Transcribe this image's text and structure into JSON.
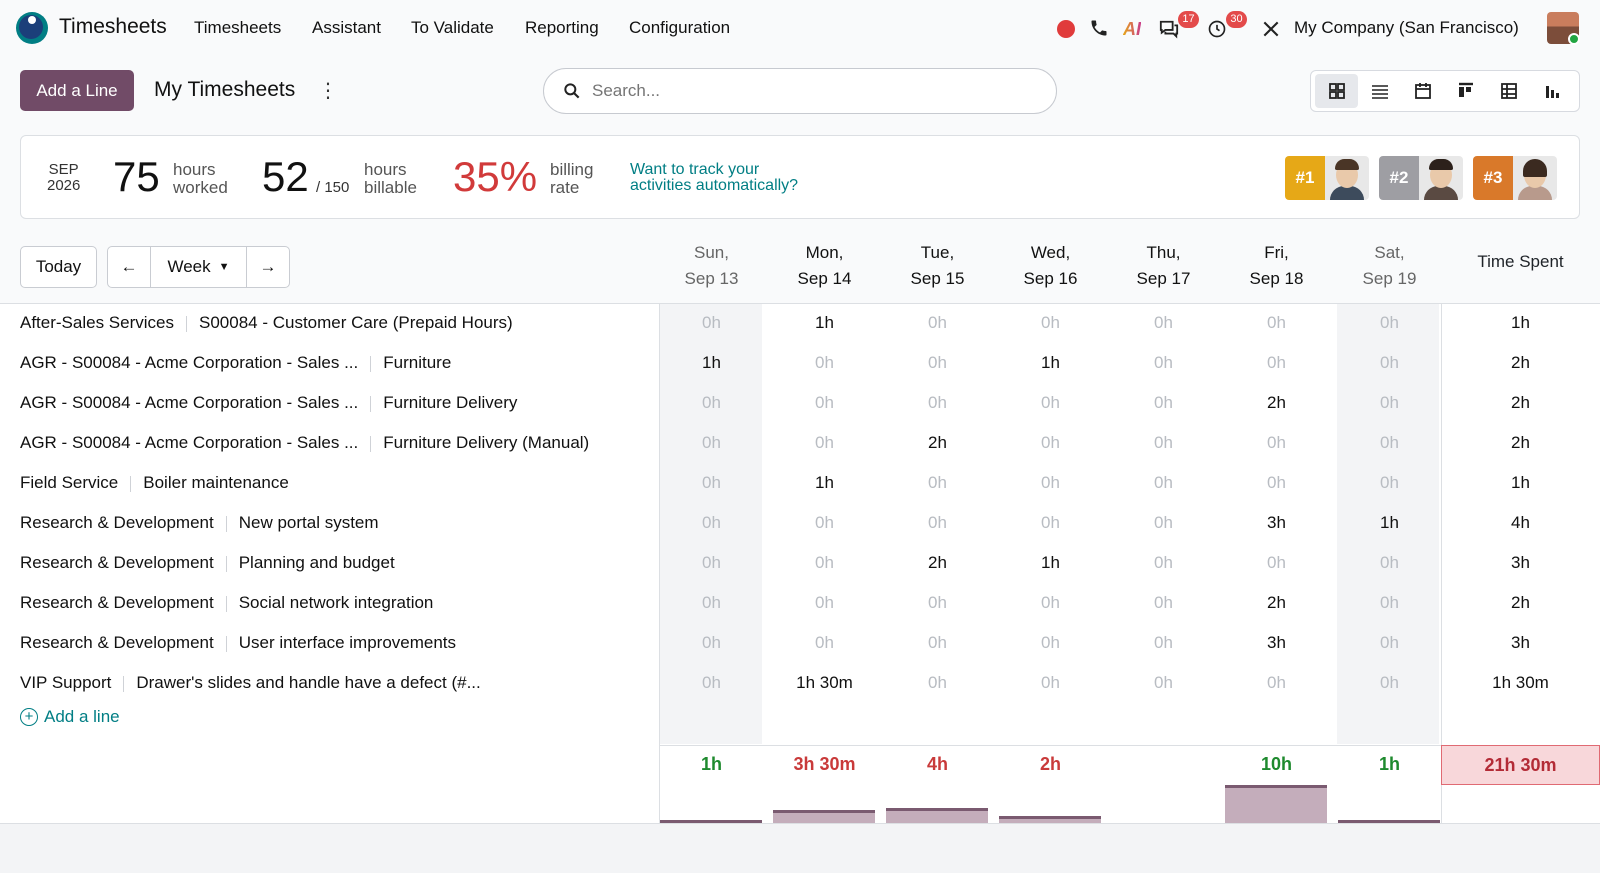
{
  "nav": {
    "app_title": "Timesheets",
    "menu": [
      "Timesheets",
      "Assistant",
      "To Validate",
      "Reporting",
      "Configuration"
    ],
    "ai_label": "AI",
    "messages_badge": "17",
    "activities_badge": "30",
    "company": "My Company (San Francisco)"
  },
  "toolbar": {
    "add_button": "Add a Line",
    "breadcrumb": "My Timesheets",
    "search_placeholder": "Search..."
  },
  "stats": {
    "month": "SEP",
    "year": "2026",
    "hours_worked": "75",
    "hours_worked_label_1": "hours",
    "hours_worked_label_2": "worked",
    "hours_billable": "52",
    "billable_target": "/ 150",
    "hours_billable_label_1": "hours",
    "hours_billable_label_2": "billable",
    "billing_rate": "35%",
    "billing_rate_label_1": "billing",
    "billing_rate_label_2": "rate",
    "track_link_1": "Want to track your",
    "track_link_2": "activities automatically?",
    "ranks": [
      {
        "label": "#1",
        "color": "#e6a817"
      },
      {
        "label": "#2",
        "color": "#9e9ea3"
      },
      {
        "label": "#3",
        "color": "#d9792a"
      }
    ]
  },
  "grid": {
    "today": "Today",
    "prev": "←",
    "period": "Week",
    "next": "→",
    "time_spent_header": "Time Spent",
    "days": [
      {
        "day": "Sun,",
        "date": "Sep 13",
        "weekend": true
      },
      {
        "day": "Mon,",
        "date": "Sep 14",
        "weekend": false
      },
      {
        "day": "Tue,",
        "date": "Sep 15",
        "weekend": false
      },
      {
        "day": "Wed,",
        "date": "Sep 16",
        "weekend": false
      },
      {
        "day": "Thu,",
        "date": "Sep 17",
        "weekend": false
      },
      {
        "day": "Fri,",
        "date": "Sep 18",
        "weekend": false
      },
      {
        "day": "Sat,",
        "date": "Sep 19",
        "weekend": true
      }
    ],
    "rows": [
      {
        "project": "After-Sales Services",
        "task": "S00084 - Customer Care (Prepaid Hours)",
        "values": [
          "0h",
          "1h",
          "0h",
          "0h",
          "0h",
          "0h",
          "0h"
        ],
        "total": "1h"
      },
      {
        "project": "AGR - S00084 - Acme Corporation - Sales ...",
        "task": "Furniture",
        "values": [
          "1h",
          "0h",
          "0h",
          "1h",
          "0h",
          "0h",
          "0h"
        ],
        "total": "2h"
      },
      {
        "project": "AGR - S00084 - Acme Corporation - Sales ...",
        "task": "Furniture Delivery",
        "values": [
          "0h",
          "0h",
          "0h",
          "0h",
          "0h",
          "2h",
          "0h"
        ],
        "total": "2h"
      },
      {
        "project": "AGR - S00084 - Acme Corporation - Sales ...",
        "task": "Furniture Delivery (Manual)",
        "values": [
          "0h",
          "0h",
          "2h",
          "0h",
          "0h",
          "0h",
          "0h"
        ],
        "total": "2h"
      },
      {
        "project": "Field Service",
        "task": "Boiler maintenance",
        "values": [
          "0h",
          "1h",
          "0h",
          "0h",
          "0h",
          "0h",
          "0h"
        ],
        "total": "1h"
      },
      {
        "project": "Research & Development",
        "task": "New portal system",
        "values": [
          "0h",
          "0h",
          "0h",
          "0h",
          "0h",
          "3h",
          "1h"
        ],
        "total": "4h"
      },
      {
        "project": "Research & Development",
        "task": "Planning and budget",
        "values": [
          "0h",
          "0h",
          "2h",
          "1h",
          "0h",
          "0h",
          "0h"
        ],
        "total": "3h"
      },
      {
        "project": "Research & Development",
        "task": "Social network integration",
        "values": [
          "0h",
          "0h",
          "0h",
          "0h",
          "0h",
          "2h",
          "0h"
        ],
        "total": "2h"
      },
      {
        "project": "Research & Development",
        "task": "User interface improvements",
        "values": [
          "0h",
          "0h",
          "0h",
          "0h",
          "0h",
          "3h",
          "0h"
        ],
        "total": "3h"
      },
      {
        "project": "VIP Support",
        "task": "Drawer's slides and handle have a defect (#...",
        "values": [
          "0h",
          "1h 30m",
          "0h",
          "0h",
          "0h",
          "0h",
          "0h"
        ],
        "total": "1h 30m"
      }
    ],
    "add_line": "Add a line",
    "day_totals": [
      {
        "label": "1h",
        "color": "#1e8a2e",
        "hours": 1
      },
      {
        "label": "3h 30m",
        "color": "#c93a3a",
        "hours": 3.5
      },
      {
        "label": "4h",
        "color": "#c93a3a",
        "hours": 4
      },
      {
        "label": "2h",
        "color": "#c93a3a",
        "hours": 2
      },
      {
        "label": "",
        "color": "#c93a3a",
        "hours": 0
      },
      {
        "label": "10h",
        "color": "#1e8a2e",
        "hours": 10
      },
      {
        "label": "1h",
        "color": "#1e8a2e",
        "hours": 1
      }
    ],
    "grand_total": "21h 30m"
  }
}
